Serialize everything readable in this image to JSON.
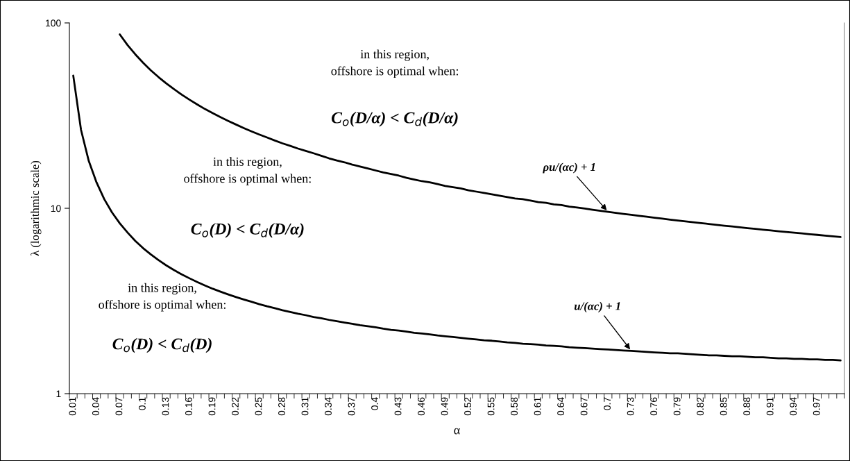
{
  "chart_data": {
    "type": "line",
    "xlabel": "α",
    "ylabel": "λ (logarithmic scale)",
    "log": "y",
    "ylim": [
      1,
      100
    ],
    "yticks": [
      1,
      10,
      100
    ],
    "grid": false,
    "legend": false,
    "categories": [
      "0.01",
      null,
      null,
      "0.04",
      null,
      null,
      "0.07",
      null,
      null,
      "0.1",
      null,
      null,
      "0.13",
      null,
      null,
      "0.16",
      null,
      null,
      "0.19",
      null,
      null,
      "0.22",
      null,
      null,
      "0.25",
      null,
      null,
      "0.28",
      null,
      null,
      "0.31",
      null,
      null,
      "0.34",
      null,
      null,
      "0.37",
      null,
      null,
      "0.4",
      null,
      null,
      "0.43",
      null,
      null,
      "0.46",
      null,
      null,
      "0.49",
      null,
      null,
      "0.52",
      null,
      null,
      "0.55",
      null,
      null,
      "0.58",
      null,
      null,
      "0.61",
      null,
      null,
      "0.64",
      null,
      null,
      "0.67",
      null,
      null,
      "0.7",
      null,
      null,
      "0.73",
      null,
      null,
      "0.76",
      null,
      null,
      "0.79",
      null,
      null,
      "0.82",
      null,
      null,
      "0.85",
      null,
      null,
      "0.88",
      null,
      null,
      "0.91",
      null,
      null,
      "0.94",
      null,
      null,
      "0.97",
      null,
      null,
      null
    ],
    "series": [
      {
        "color": "#000000",
        "values": [
          null,
          null,
          null,
          null,
          null,
          null,
          86.7,
          76,
          67.7,
          61,
          55.5,
          51,
          47.2,
          43.9,
          41,
          38.5,
          36.3,
          34.3,
          32.6,
          31,
          29.6,
          28.3,
          27.1,
          26,
          25,
          24.1,
          23.2,
          22.4,
          21.7,
          21,
          20.4,
          19.8,
          19.2,
          18.6,
          18.1,
          17.7,
          17.2,
          16.8,
          16.4,
          16,
          15.6,
          15.3,
          15,
          14.6,
          14.3,
          14,
          13.8,
          13.5,
          13.2,
          13,
          12.8,
          12.5,
          12.3,
          12.1,
          11.9,
          11.7,
          11.5,
          11.3,
          11.2,
          11,
          10.8,
          10.7,
          10.5,
          10.4,
          10.2,
          10.1,
          9.96,
          9.82,
          9.7,
          9.57,
          9.45,
          9.33,
          9.22,
          9.11,
          9,
          8.89,
          8.79,
          8.69,
          8.59,
          8.5,
          8.41,
          8.32,
          8.23,
          8.14,
          8.06,
          7.98,
          7.9,
          7.82,
          7.74,
          7.67,
          7.59,
          7.52,
          7.45,
          7.38,
          7.32,
          7.25,
          7.19,
          7.12,
          7.06,
          7.0
        ]
      },
      {
        "color": "#000000",
        "values": [
          52,
          26.5,
          18,
          13.8,
          11.2,
          9.5,
          8.3,
          7.4,
          6.67,
          6.1,
          5.64,
          5.25,
          4.92,
          4.64,
          4.4,
          4.19,
          4.0,
          3.83,
          3.68,
          3.55,
          3.43,
          3.32,
          3.22,
          3.13,
          3.04,
          2.96,
          2.89,
          2.82,
          2.76,
          2.7,
          2.65,
          2.59,
          2.55,
          2.5,
          2.46,
          2.42,
          2.38,
          2.34,
          2.31,
          2.28,
          2.24,
          2.21,
          2.19,
          2.16,
          2.13,
          2.11,
          2.09,
          2.06,
          2.04,
          2.02,
          2.0,
          1.98,
          1.96,
          1.94,
          1.93,
          1.91,
          1.89,
          1.88,
          1.86,
          1.85,
          1.84,
          1.82,
          1.81,
          1.8,
          1.78,
          1.77,
          1.76,
          1.75,
          1.74,
          1.73,
          1.72,
          1.71,
          1.7,
          1.69,
          1.68,
          1.67,
          1.66,
          1.65,
          1.65,
          1.64,
          1.63,
          1.62,
          1.61,
          1.61,
          1.6,
          1.59,
          1.59,
          1.58,
          1.57,
          1.57,
          1.56,
          1.55,
          1.55,
          1.54,
          1.54,
          1.53,
          1.53,
          1.52,
          1.52,
          1.51
        ]
      }
    ],
    "annotations": [
      "in this region,\noffshore is optimal when:",
      "C$_{o}$(D/α) < C$_{d}$(D/α)",
      "in this region,\noffshore is optimal when:",
      "C$_{o}$(D) < C$_{d}$(D/α)",
      "in this region,\noffshore is optimal when:",
      "C$_{o}$(D) < C$_{d}$(D)",
      {
        "text": "ρu/(αc) + 1",
        "x": "0.7",
        "y": 9.57
      },
      {
        "text": "u/(αc) + 1",
        "x": "0.73",
        "y": 1.7
      }
    ]
  }
}
